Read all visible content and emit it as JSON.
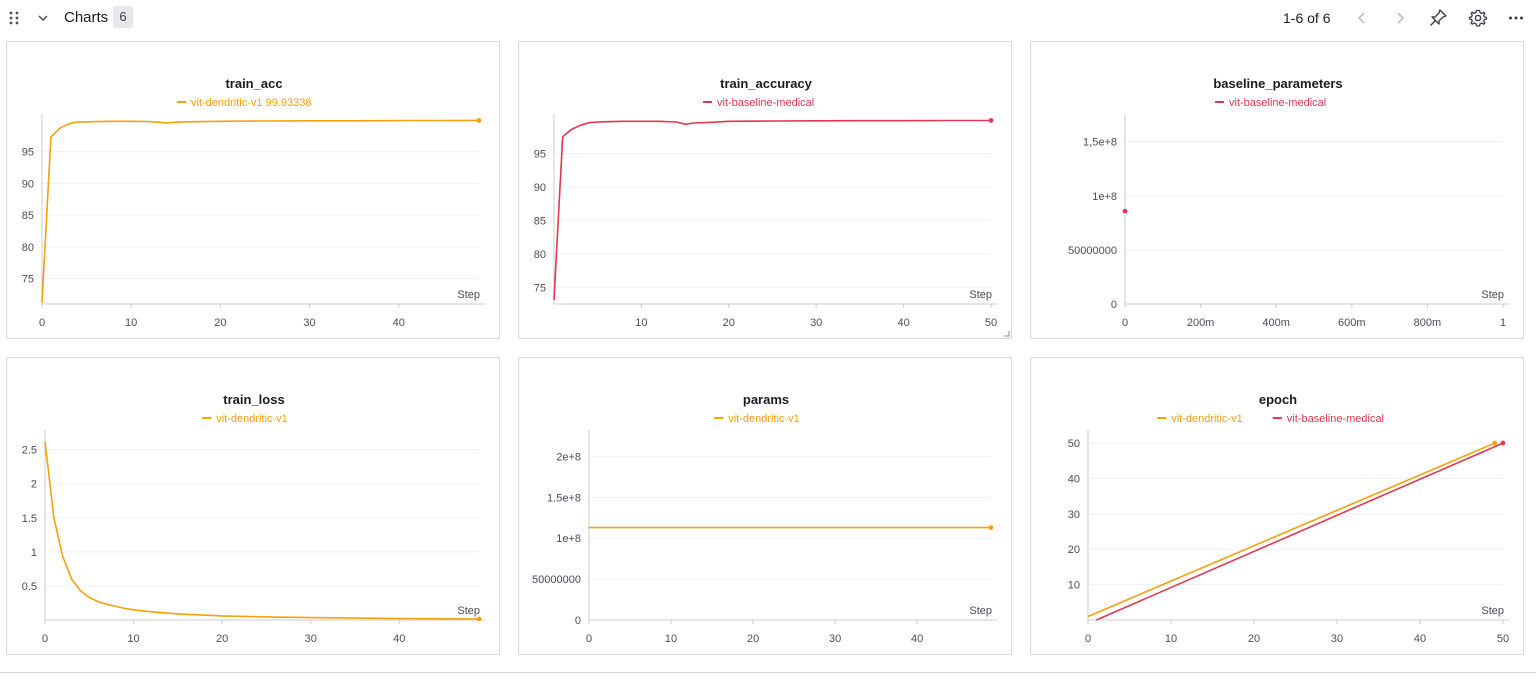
{
  "header": {
    "section_title": "Charts",
    "count": "6",
    "pager": "1-6 of 6",
    "icons": [
      "drag-handle-icon",
      "chevron-down-icon",
      "chevron-left-icon",
      "chevron-right-icon",
      "pin-icon",
      "gear-icon",
      "more-icon"
    ]
  },
  "colors": {
    "dendritic": "#f5a10c",
    "baseline": "#e0384f"
  },
  "chart_data": [
    {
      "type": "line",
      "title": "train_acc",
      "legend": [
        {
          "label": "vit-dendritic-v1 99.93338",
          "color": "#f5a10c"
        }
      ],
      "xlabel": "Step",
      "xlim": [
        0,
        49
      ],
      "ylim": [
        71,
        100
      ],
      "xticks": [
        0,
        10,
        20,
        30,
        40
      ],
      "yticks": [
        75,
        80,
        85,
        90,
        95
      ],
      "series": [
        {
          "name": "vit-dendritic-v1",
          "color": "#f5a10c",
          "x": [
            0,
            1,
            2,
            3,
            4,
            5,
            6,
            8,
            10,
            12,
            14,
            15,
            16,
            18,
            20,
            25,
            30,
            35,
            40,
            45,
            49
          ],
          "y": [
            71.2,
            97.3,
            98.7,
            99.4,
            99.7,
            99.7,
            99.75,
            99.8,
            99.8,
            99.75,
            99.55,
            99.65,
            99.7,
            99.75,
            99.8,
            99.85,
            99.87,
            99.88,
            99.9,
            99.92,
            99.93
          ]
        }
      ]
    },
    {
      "type": "line",
      "title": "train_accuracy",
      "legend": [
        {
          "label": "vit-baseline-medical",
          "color": "#e0384f"
        }
      ],
      "xlabel": "Step",
      "xlim": [
        0,
        50
      ],
      "ylim": [
        72.5,
        100
      ],
      "xticks": [
        10,
        20,
        30,
        40,
        50
      ],
      "yticks": [
        75,
        80,
        85,
        90,
        95
      ],
      "series": [
        {
          "name": "vit-baseline-medical",
          "color": "#e0384f",
          "x": [
            0,
            1,
            2,
            3,
            4,
            5,
            6,
            8,
            10,
            12,
            14,
            15,
            16,
            17,
            18,
            20,
            25,
            30,
            35,
            40,
            45,
            50
          ],
          "y": [
            73.1,
            97.5,
            98.6,
            99.2,
            99.6,
            99.7,
            99.75,
            99.8,
            99.8,
            99.8,
            99.7,
            99.35,
            99.55,
            99.6,
            99.65,
            99.8,
            99.85,
            99.88,
            99.9,
            99.9,
            99.92,
            99.93
          ]
        }
      ]
    },
    {
      "type": "scatter",
      "title": "baseline_parameters",
      "legend": [
        {
          "label": "vit-baseline-medical",
          "color": "#e0384f"
        }
      ],
      "xlabel": "Step",
      "xlim": [
        0,
        1
      ],
      "ylim": [
        0,
        170000000
      ],
      "xticks": [
        0,
        0.2,
        0.4,
        0.6,
        0.8,
        1
      ],
      "xticklabels": [
        "0",
        "200m",
        "400m",
        "600m",
        "800m",
        "1"
      ],
      "yticks": [
        0,
        50000000,
        100000000,
        150000000
      ],
      "yticklabels": [
        "0",
        "50000000",
        "1e+8",
        "1,5e+8"
      ],
      "series": [
        {
          "name": "vit-baseline-medical",
          "color": "#e0384f",
          "x": [
            0
          ],
          "y": [
            85800000
          ]
        }
      ]
    },
    {
      "type": "line",
      "title": "train_loss",
      "legend": [
        {
          "label": "vit-dendritic-v1",
          "color": "#f5a10c"
        }
      ],
      "xlabel": "Step",
      "xlim": [
        0,
        49
      ],
      "ylim": [
        0,
        2.7
      ],
      "xticks": [
        0,
        10,
        20,
        30,
        40
      ],
      "yticks": [
        0.5,
        1,
        1.5,
        2,
        2.5
      ],
      "yticklabels": [
        "0.5",
        "1",
        "1.5",
        "2",
        "2.5"
      ],
      "series": [
        {
          "name": "vit-dendritic-v1",
          "color": "#f5a10c",
          "x": [
            0,
            1,
            2,
            3,
            4,
            5,
            6,
            7,
            8,
            9,
            10,
            12,
            15,
            20,
            25,
            30,
            35,
            40,
            45,
            49
          ],
          "y": [
            2.62,
            1.5,
            0.93,
            0.6,
            0.43,
            0.33,
            0.27,
            0.23,
            0.2,
            0.17,
            0.15,
            0.12,
            0.09,
            0.06,
            0.045,
            0.035,
            0.028,
            0.022,
            0.018,
            0.015
          ]
        }
      ]
    },
    {
      "type": "line",
      "title": "params",
      "legend": [
        {
          "label": "vit-dendritic-v1",
          "color": "#f5a10c"
        }
      ],
      "xlabel": "Step",
      "xlim": [
        0,
        49
      ],
      "ylim": [
        0,
        225000000
      ],
      "xticks": [
        0,
        10,
        20,
        30,
        40
      ],
      "yticks": [
        0,
        50000000,
        100000000,
        150000000,
        200000000
      ],
      "yticklabels": [
        "0",
        "50000000",
        "1e+8",
        "1.5e+8",
        "2e+8"
      ],
      "series": [
        {
          "name": "vit-dendritic-v1",
          "color": "#f5a10c",
          "x": [
            0,
            49
          ],
          "y": [
            113000000,
            113000000
          ]
        }
      ]
    },
    {
      "type": "line",
      "title": "epoch",
      "legend": [
        {
          "label": "vit-dendritic-v1",
          "color": "#f5a10c"
        },
        {
          "label": "vit-baseline-medical",
          "color": "#e0384f"
        }
      ],
      "xlabel": "Step",
      "xlim": [
        0,
        50
      ],
      "ylim": [
        0,
        52
      ],
      "xticks": [
        0,
        10,
        20,
        30,
        40,
        50
      ],
      "yticks": [
        10,
        20,
        30,
        40,
        50
      ],
      "series": [
        {
          "name": "vit-dendritic-v1",
          "color": "#f5a10c",
          "x": [
            0,
            49
          ],
          "y": [
            1,
            50
          ]
        },
        {
          "name": "vit-baseline-medical",
          "color": "#e0384f",
          "x": [
            1,
            50
          ],
          "y": [
            0,
            50
          ]
        }
      ]
    }
  ]
}
